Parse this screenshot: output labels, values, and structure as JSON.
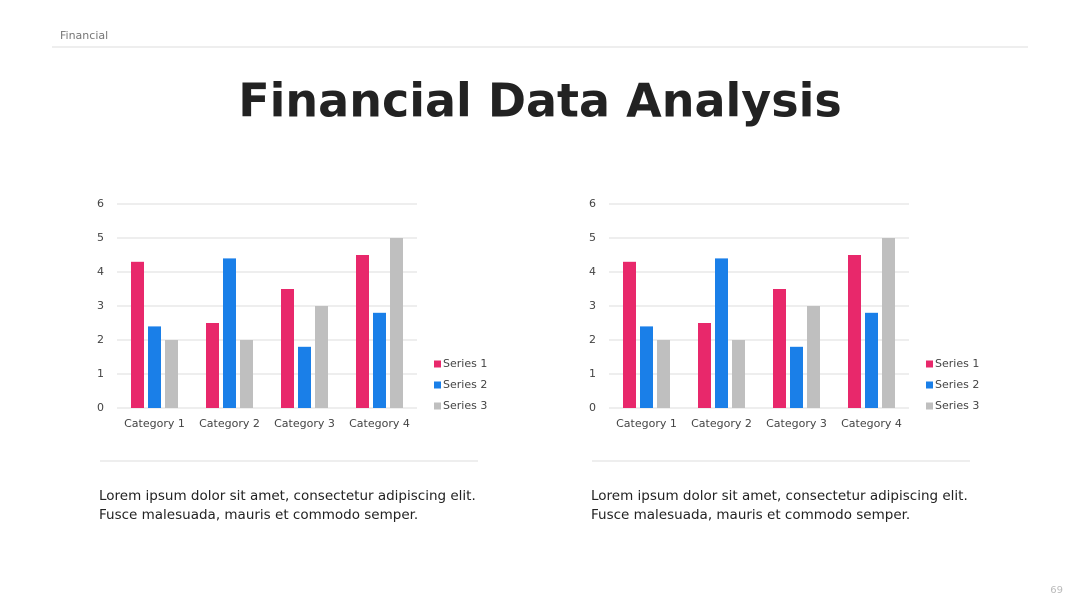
{
  "header": "Financial",
  "title": "Financial Data Analysis",
  "chart_data": [
    {
      "type": "bar",
      "categories": [
        "Category 1",
        "Category 2",
        "Category 3",
        "Category 4"
      ],
      "series": [
        {
          "name": "Series 1",
          "color": "#e8286b",
          "values": [
            4.3,
            2.5,
            3.5,
            4.5
          ]
        },
        {
          "name": "Series 2",
          "color": "#1a7fe8",
          "values": [
            2.4,
            4.4,
            1.8,
            2.8
          ]
        },
        {
          "name": "Series 3",
          "color": "#bfbfbf",
          "values": [
            2,
            2,
            3,
            5
          ]
        }
      ],
      "ylim": [
        0,
        6
      ],
      "yticks": [
        0,
        1,
        2,
        3,
        4,
        5,
        6
      ],
      "grid": true,
      "legend": "right"
    },
    {
      "type": "bar",
      "categories": [
        "Category 1",
        "Category 2",
        "Category 3",
        "Category 4"
      ],
      "series": [
        {
          "name": "Series 1",
          "color": "#e8286b",
          "values": [
            4.3,
            2.5,
            3.5,
            4.5
          ]
        },
        {
          "name": "Series 2",
          "color": "#1a7fe8",
          "values": [
            2.4,
            4.4,
            1.8,
            2.8
          ]
        },
        {
          "name": "Series 3",
          "color": "#bfbfbf",
          "values": [
            2,
            2,
            3,
            5
          ]
        }
      ],
      "ylim": [
        0,
        6
      ],
      "yticks": [
        0,
        1,
        2,
        3,
        4,
        5,
        6
      ],
      "grid": true,
      "legend": "right"
    }
  ],
  "captions": [
    [
      "Lorem ipsum dolor sit amet, consectetur adipiscing elit.",
      "Fusce malesuada, mauris et commodo semper."
    ],
    [
      "Lorem ipsum dolor sit amet, consectetur adipiscing elit.",
      "Fusce malesuada, mauris et commodo semper."
    ]
  ],
  "page_number": "69"
}
